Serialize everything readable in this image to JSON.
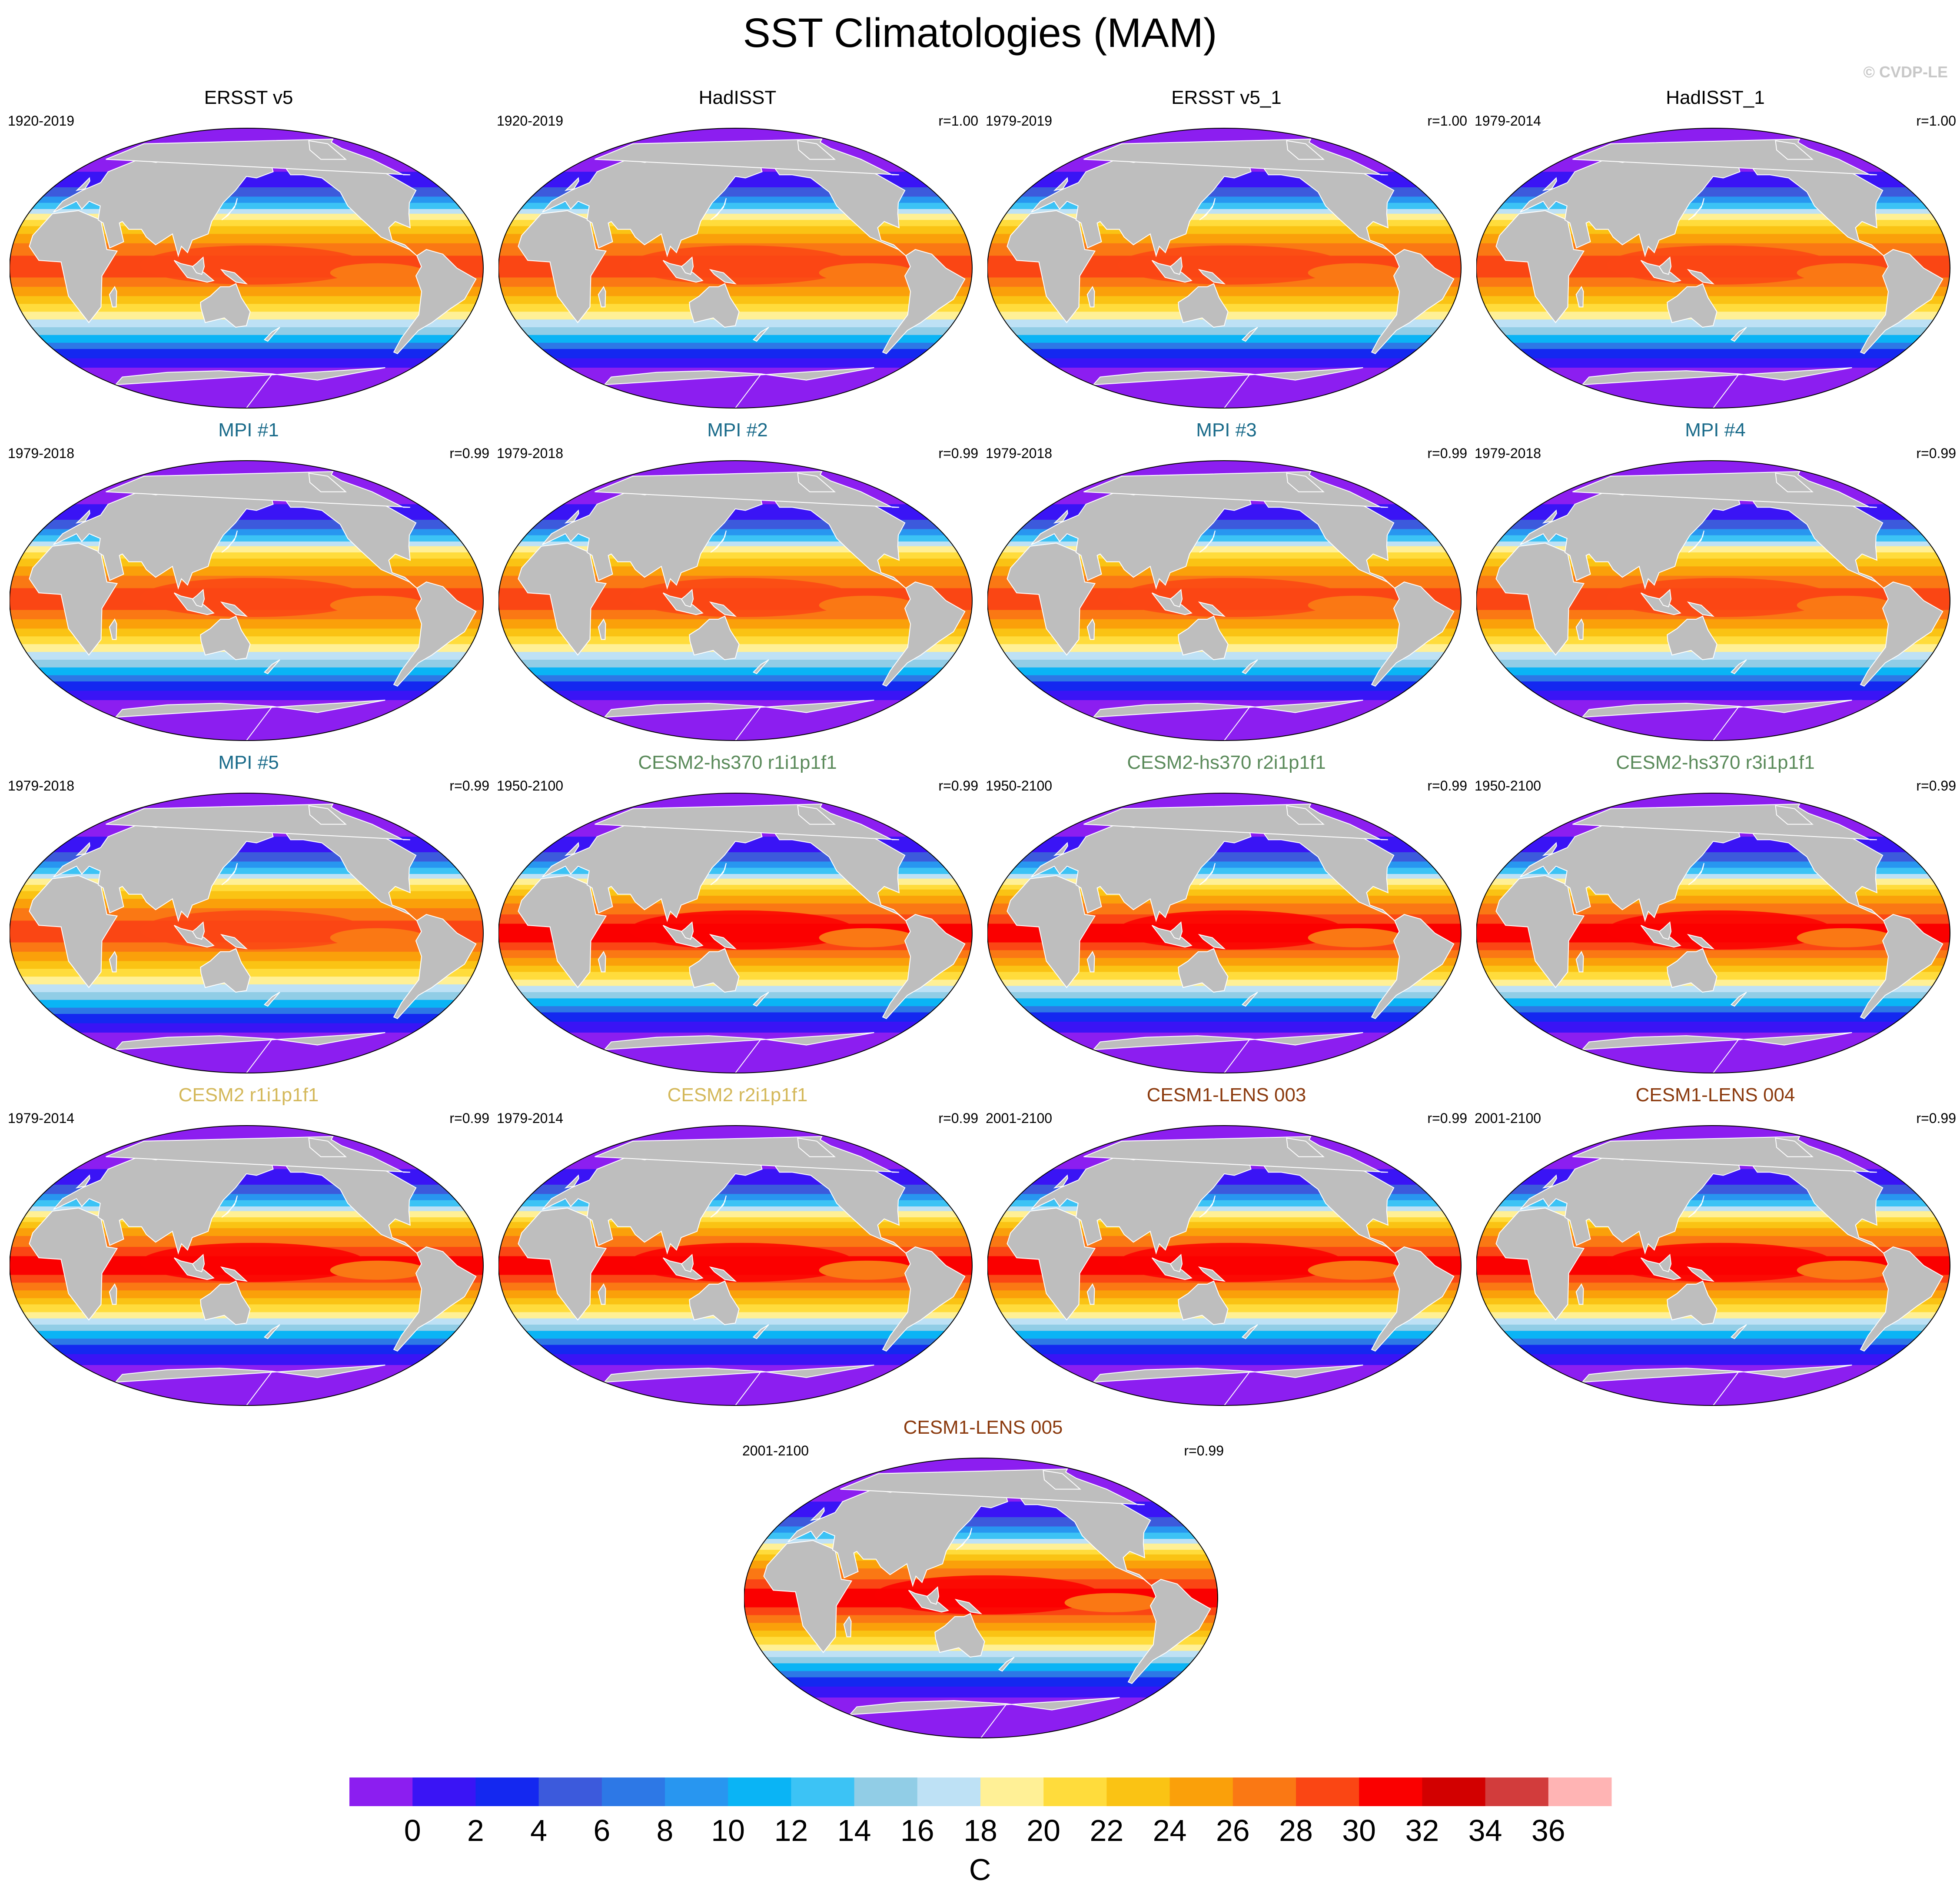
{
  "title": "SST Climatologies (MAM)",
  "copyright": "© CVDP-LE",
  "panels": [
    {
      "title": "ERSST v5",
      "period": "1920-2019",
      "corr": "",
      "color": "#000000",
      "variant": 0
    },
    {
      "title": "HadISST",
      "period": "1920-2019",
      "corr": "r=1.00",
      "color": "#000000",
      "variant": 0
    },
    {
      "title": "ERSST v5_1",
      "period": "1979-2019",
      "corr": "r=1.00",
      "color": "#000000",
      "variant": 0
    },
    {
      "title": "HadISST_1",
      "period": "1979-2014",
      "corr": "r=1.00",
      "color": "#000000",
      "variant": 0
    },
    {
      "title": "MPI #1",
      "period": "1979-2018",
      "corr": "r=0.99",
      "color": "#1a6b8a",
      "variant": 0
    },
    {
      "title": "MPI #2",
      "period": "1979-2018",
      "corr": "r=0.99",
      "color": "#1a6b8a",
      "variant": 0
    },
    {
      "title": "MPI #3",
      "period": "1979-2018",
      "corr": "r=0.99",
      "color": "#1a6b8a",
      "variant": 0
    },
    {
      "title": "MPI #4",
      "period": "1979-2018",
      "corr": "r=0.99",
      "color": "#1a6b8a",
      "variant": 0
    },
    {
      "title": "MPI #5",
      "period": "1979-2018",
      "corr": "r=0.99",
      "color": "#1a6b8a",
      "variant": 0
    },
    {
      "title": "CESM2-hs370 r1i1p1f1",
      "period": "1950-2100",
      "corr": "r=0.99",
      "color": "#5a8a5a",
      "variant": 1
    },
    {
      "title": "CESM2-hs370 r2i1p1f1",
      "period": "1950-2100",
      "corr": "r=0.99",
      "color": "#5a8a5a",
      "variant": 1
    },
    {
      "title": "CESM2-hs370 r3i1p1f1",
      "period": "1950-2100",
      "corr": "r=0.99",
      "color": "#5a8a5a",
      "variant": 1
    },
    {
      "title": "CESM2 r1i1p1f1",
      "period": "1979-2014",
      "corr": "r=0.99",
      "color": "#d4b85a",
      "variant": 1
    },
    {
      "title": "CESM2 r2i1p1f1",
      "period": "1979-2014",
      "corr": "r=0.99",
      "color": "#d4b85a",
      "variant": 1
    },
    {
      "title": "CESM1-LENS 003",
      "period": "2001-2100",
      "corr": "r=0.99",
      "color": "#8b3a0e",
      "variant": 1
    },
    {
      "title": "CESM1-LENS 004",
      "period": "2001-2100",
      "corr": "r=0.99",
      "color": "#8b3a0e",
      "variant": 1
    },
    {
      "title": "CESM1-LENS 005",
      "period": "2001-2100",
      "corr": "r=0.99",
      "color": "#8b3a0e",
      "variant": 1
    }
  ],
  "colorbar": {
    "colors": [
      "#8c1ef0",
      "#3a14f5",
      "#1428f0",
      "#3c5adc",
      "#2d78e6",
      "#2896f0",
      "#0ab4f5",
      "#3cc3f5",
      "#91cde6",
      "#bee1f5",
      "#fff096",
      "#ffdc3c",
      "#fac314",
      "#faa00a",
      "#fa7814",
      "#fa4614",
      "#fa0000",
      "#d20000",
      "#d23c3c",
      "#ffb4b4"
    ],
    "labels": [
      "0",
      "2",
      "4",
      "6",
      "8",
      "10",
      "12",
      "14",
      "16",
      "18",
      "20",
      "22",
      "24",
      "26",
      "28",
      "30",
      "32",
      "34",
      "36"
    ],
    "unit": "C"
  }
}
